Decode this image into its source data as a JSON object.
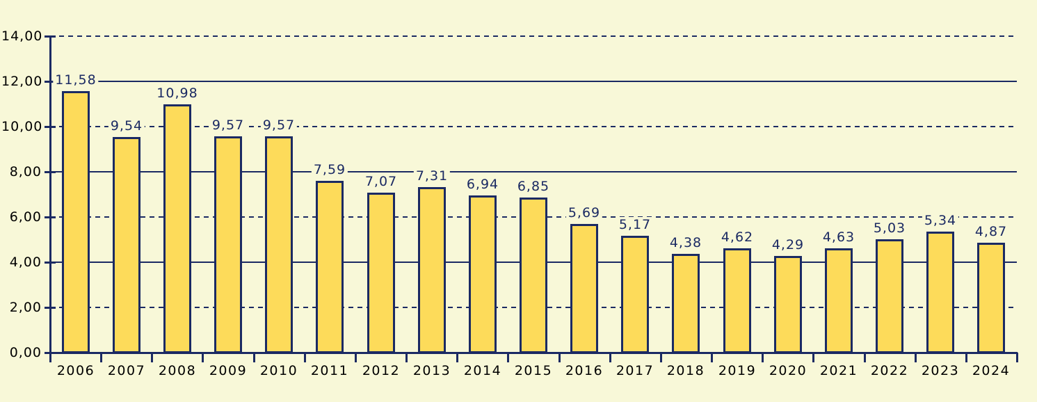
{
  "chart_data": {
    "type": "bar",
    "title": "",
    "xlabel": "",
    "ylabel": "",
    "categories": [
      "2006",
      "2007",
      "2008",
      "2009",
      "2010",
      "2011",
      "2012",
      "2013",
      "2014",
      "2015",
      "2016",
      "2017",
      "2018",
      "2019",
      "2020",
      "2021",
      "2022",
      "2023",
      "2024"
    ],
    "values": [
      11.58,
      9.54,
      10.98,
      9.57,
      9.57,
      7.59,
      7.07,
      7.31,
      6.94,
      6.85,
      5.69,
      5.17,
      4.38,
      4.62,
      4.29,
      4.63,
      5.03,
      5.34,
      4.87
    ],
    "value_labels": [
      "11,58",
      "9,54",
      "10,98",
      "9,57",
      "9,57",
      "7,59",
      "7,07",
      "7,31",
      "6,94",
      "6,85",
      "5,69",
      "5,17",
      "4,38",
      "4,62",
      "4,29",
      "4,63",
      "5,03",
      "5,34",
      "4,87"
    ],
    "ylim": [
      0,
      14
    ],
    "y_tick_step": 2,
    "y_tick_values": [
      14,
      12,
      10,
      8,
      6,
      4,
      2,
      0
    ],
    "y_tick_labels": [
      "14,00",
      "12,00",
      "10,00",
      "8,00",
      "6,00",
      "4,00",
      "2,00",
      "0,00"
    ],
    "grid": {
      "on": true,
      "solid_at": [
        12,
        8,
        4
      ],
      "dashed_at": [
        14,
        10,
        6,
        2
      ]
    },
    "legend": "none",
    "colors": {
      "background": "#f8f8d8",
      "bar_fill": "#fddb5a",
      "bar_border": "#1b2a63",
      "grid_line": "#1b2a63",
      "axis_line": "#1b2a63",
      "value_label_text": "#1b2a63",
      "axis_label_text": "#000000"
    }
  }
}
